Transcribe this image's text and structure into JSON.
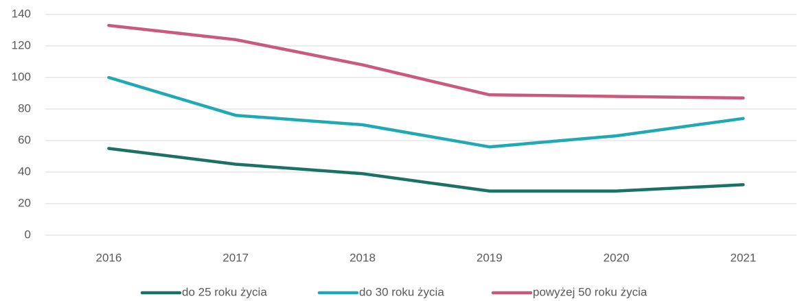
{
  "chart_data": {
    "type": "line",
    "categories": [
      "2016",
      "2017",
      "2018",
      "2019",
      "2020",
      "2021"
    ],
    "series": [
      {
        "name": "do 25 roku życia",
        "color": "#1b7166",
        "values": [
          55,
          45,
          39,
          28,
          28,
          32
        ]
      },
      {
        "name": "do 30 roku życia",
        "color": "#20a9b5",
        "values": [
          100,
          76,
          70,
          56,
          63,
          74
        ]
      },
      {
        "name": "powyżej 50 roku życia",
        "color": "#c95a7d",
        "values": [
          133,
          124,
          108,
          89,
          88,
          87
        ]
      }
    ],
    "ylim": [
      0,
      140
    ],
    "yticks": [
      0,
      20,
      40,
      60,
      80,
      100,
      120,
      140
    ],
    "grid": true,
    "legend": "bottom"
  }
}
